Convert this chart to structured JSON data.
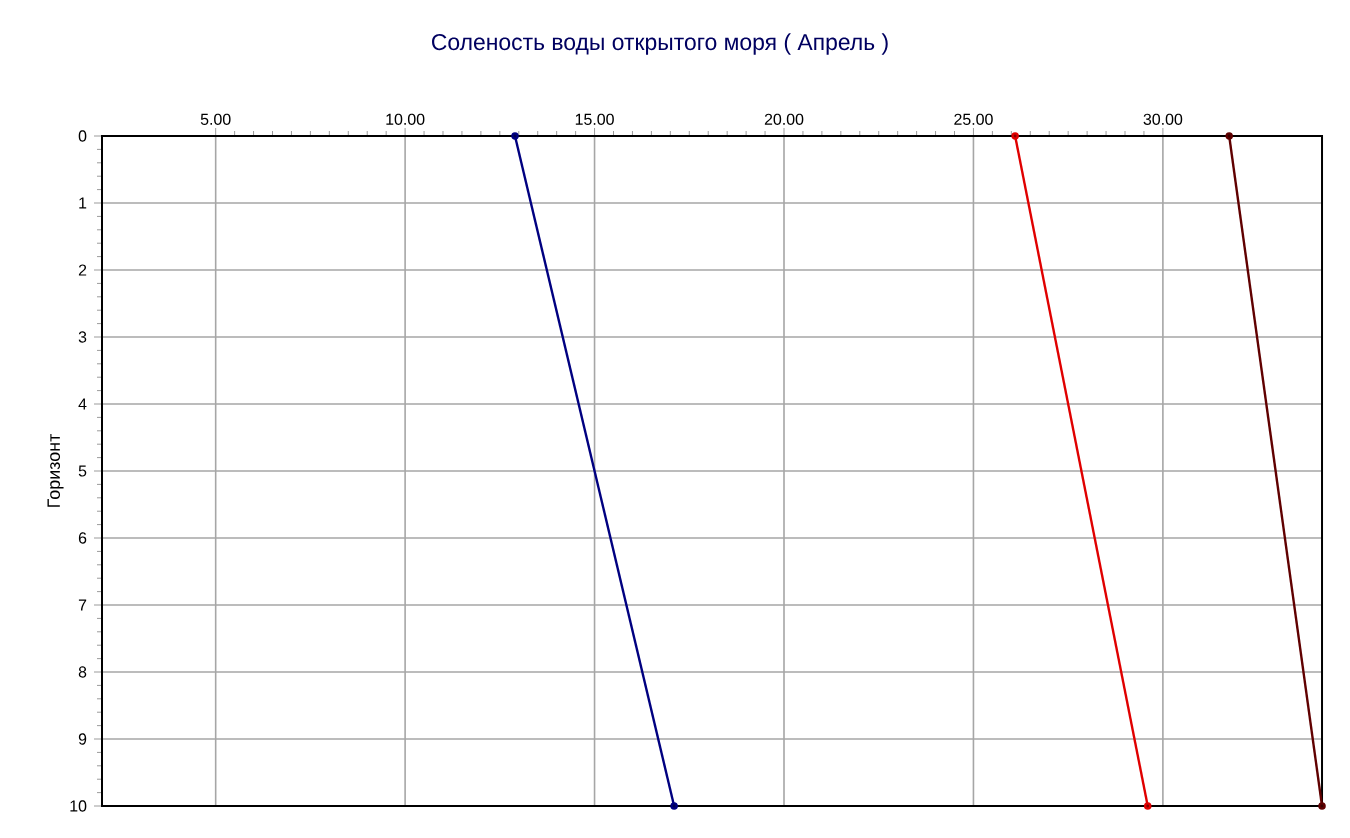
{
  "chart_data": {
    "type": "line",
    "title": "Соленость воды открытого моря    ( Апрель )",
    "ylabel": "Горизонт",
    "series": [
      {
        "color": "#000080",
        "x": [
          12.9,
          17.1
        ],
        "values": [
          0,
          10
        ]
      },
      {
        "color": "#e00000",
        "x": [
          26.1,
          29.6
        ],
        "values": [
          0,
          10
        ]
      },
      {
        "color": "#600000",
        "x": [
          31.75,
          34.2
        ],
        "values": [
          0,
          10
        ]
      }
    ],
    "xlim": [
      2,
      34.2
    ],
    "xticks": [
      {
        "value": 5,
        "label": "5.00"
      },
      {
        "value": 10,
        "label": "10.00"
      },
      {
        "value": 15,
        "label": "15.00"
      },
      {
        "value": 20,
        "label": "20.00"
      },
      {
        "value": 25,
        "label": "25.00"
      },
      {
        "value": 30,
        "label": "30.00"
      }
    ],
    "ylim": [
      10,
      0
    ],
    "yticks": [
      0,
      1,
      2,
      3,
      4,
      5,
      6,
      7,
      8,
      9,
      10
    ],
    "grid": true,
    "marker": "circle",
    "line_style": "solid"
  }
}
